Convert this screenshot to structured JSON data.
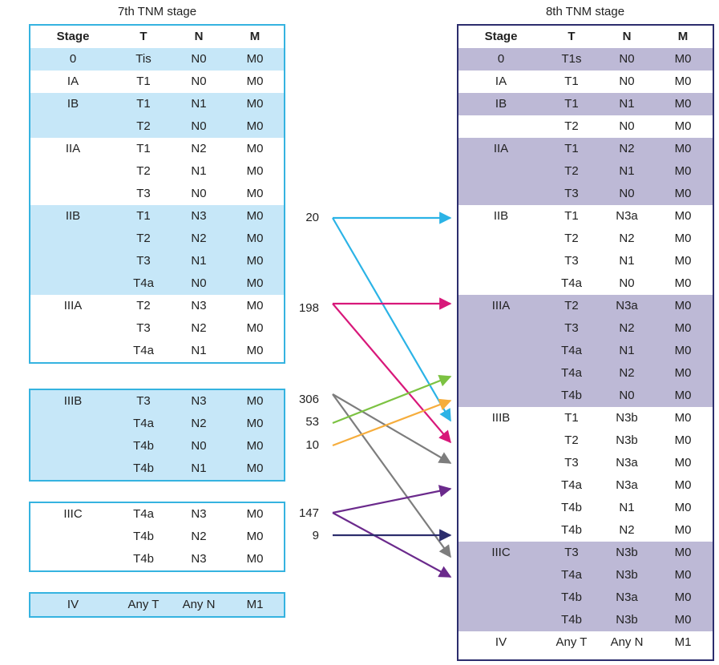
{
  "titles": {
    "left": "7th TNM stage",
    "right": "8th TNM stage"
  },
  "header": {
    "stage": "Stage",
    "t": "T",
    "n": "N",
    "m": "M"
  },
  "left_tables": [
    {
      "rows": [
        {
          "stage": "0",
          "t": "Tis",
          "n": "N0",
          "m": "M0",
          "shade": true
        },
        {
          "stage": "IA",
          "t": "T1",
          "n": "N0",
          "m": "M0",
          "shade": false
        },
        {
          "stage": "IB",
          "t": "T1",
          "n": "N1",
          "m": "M0",
          "shade": true
        },
        {
          "stage": "",
          "t": "T2",
          "n": "N0",
          "m": "M0",
          "shade": true
        },
        {
          "stage": "IIA",
          "t": "T1",
          "n": "N2",
          "m": "M0",
          "shade": false
        },
        {
          "stage": "",
          "t": "T2",
          "n": "N1",
          "m": "M0",
          "shade": false
        },
        {
          "stage": "",
          "t": "T3",
          "n": "N0",
          "m": "M0",
          "shade": false
        },
        {
          "stage": "IIB",
          "t": "T1",
          "n": "N3",
          "m": "M0",
          "shade": true
        },
        {
          "stage": "",
          "t": "T2",
          "n": "N2",
          "m": "M0",
          "shade": true
        },
        {
          "stage": "",
          "t": "T3",
          "n": "N1",
          "m": "M0",
          "shade": true
        },
        {
          "stage": "",
          "t": "T4a",
          "n": "N0",
          "m": "M0",
          "shade": true
        },
        {
          "stage": "IIIA",
          "t": "T2",
          "n": "N3",
          "m": "M0",
          "shade": false
        },
        {
          "stage": "",
          "t": "T3",
          "n": "N2",
          "m": "M0",
          "shade": false
        },
        {
          "stage": "",
          "t": "T4a",
          "n": "N1",
          "m": "M0",
          "shade": false
        }
      ]
    },
    {
      "rows": [
        {
          "stage": "IIIB",
          "t": "T3",
          "n": "N3",
          "m": "M0",
          "shade": true
        },
        {
          "stage": "",
          "t": "T4a",
          "n": "N2",
          "m": "M0",
          "shade": true
        },
        {
          "stage": "",
          "t": "T4b",
          "n": "N0",
          "m": "M0",
          "shade": true
        },
        {
          "stage": "",
          "t": "T4b",
          "n": "N1",
          "m": "M0",
          "shade": true
        }
      ]
    },
    {
      "rows": [
        {
          "stage": "IIIC",
          "t": "T4a",
          "n": "N3",
          "m": "M0",
          "shade": false
        },
        {
          "stage": "",
          "t": "T4b",
          "n": "N2",
          "m": "M0",
          "shade": false
        },
        {
          "stage": "",
          "t": "T4b",
          "n": "N3",
          "m": "M0",
          "shade": false
        }
      ]
    },
    {
      "rows": [
        {
          "stage": "IV",
          "t": "Any T",
          "n": "Any N",
          "m": "M1",
          "shade": true
        }
      ]
    }
  ],
  "right_table": {
    "rows": [
      {
        "stage": "0",
        "t": "T1s",
        "n": "N0",
        "m": "M0",
        "shade": true
      },
      {
        "stage": "IA",
        "t": "T1",
        "n": "N0",
        "m": "M0",
        "shade": false
      },
      {
        "stage": "IB",
        "t": "T1",
        "n": "N1",
        "m": "M0",
        "shade": true
      },
      {
        "stage": "",
        "t": "T2",
        "n": "N0",
        "m": "M0",
        "shade": false
      },
      {
        "stage": "IIA",
        "t": "T1",
        "n": "N2",
        "m": "M0",
        "shade": true
      },
      {
        "stage": "",
        "t": "T2",
        "n": "N1",
        "m": "M0",
        "shade": true
      },
      {
        "stage": "",
        "t": "T3",
        "n": "N0",
        "m": "M0",
        "shade": true
      },
      {
        "stage": "IIB",
        "t": "T1",
        "n": "N3a",
        "m": "M0",
        "shade": false
      },
      {
        "stage": "",
        "t": "T2",
        "n": "N2",
        "m": "M0",
        "shade": false
      },
      {
        "stage": "",
        "t": "T3",
        "n": "N1",
        "m": "M0",
        "shade": false
      },
      {
        "stage": "",
        "t": "T4a",
        "n": "N0",
        "m": "M0",
        "shade": false
      },
      {
        "stage": "IIIA",
        "t": "T2",
        "n": "N3a",
        "m": "M0",
        "shade": true
      },
      {
        "stage": "",
        "t": "T3",
        "n": "N2",
        "m": "M0",
        "shade": true
      },
      {
        "stage": "",
        "t": "T4a",
        "n": "N1",
        "m": "M0",
        "shade": true
      },
      {
        "stage": "",
        "t": "T4a",
        "n": "N2",
        "m": "M0",
        "shade": true
      },
      {
        "stage": "",
        "t": "T4b",
        "n": "N0",
        "m": "M0",
        "shade": true
      },
      {
        "stage": "IIIB",
        "t": "T1",
        "n": "N3b",
        "m": "M0",
        "shade": false
      },
      {
        "stage": "",
        "t": "T2",
        "n": "N3b",
        "m": "M0",
        "shade": false
      },
      {
        "stage": "",
        "t": "T3",
        "n": "N3a",
        "m": "M0",
        "shade": false
      },
      {
        "stage": "",
        "t": "T4a",
        "n": "N3a",
        "m": "M0",
        "shade": false
      },
      {
        "stage": "",
        "t": "T4b",
        "n": "N1",
        "m": "M0",
        "shade": false
      },
      {
        "stage": "",
        "t": "T4b",
        "n": "N2",
        "m": "M0",
        "shade": false
      },
      {
        "stage": "IIIC",
        "t": "T3",
        "n": "N3b",
        "m": "M0",
        "shade": true
      },
      {
        "stage": "",
        "t": "T4a",
        "n": "N3b",
        "m": "M0",
        "shade": true
      },
      {
        "stage": "",
        "t": "T4b",
        "n": "N3a",
        "m": "M0",
        "shade": true
      },
      {
        "stage": "",
        "t": "T4b",
        "n": "N3b",
        "m": "M0",
        "shade": true
      },
      {
        "stage": "IV",
        "t": "Any T",
        "n": "Any N",
        "m": "M1",
        "shade": false
      }
    ]
  },
  "counts": [
    "20",
    "198",
    "306",
    "53",
    "10",
    "147",
    "9"
  ],
  "colors": {
    "left_border": "#35b3e0",
    "left_shade": "#c6e7f8",
    "right_border": "#2c2d6d",
    "right_shade": "#bdb9d6",
    "arrow_cyan": "#2bb3e6",
    "arrow_magenta": "#d8187a",
    "arrow_gray": "#7d7d7d",
    "arrow_green": "#7cc242",
    "arrow_orange": "#f6ad3c",
    "arrow_purple": "#6b2a8c",
    "arrow_navy": "#2c2d6d"
  }
}
